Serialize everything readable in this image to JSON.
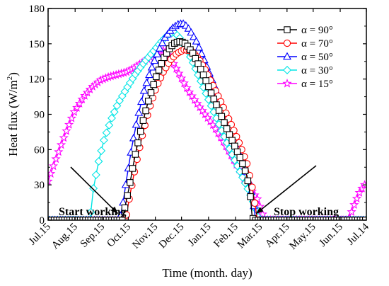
{
  "chart_data": {
    "type": "line",
    "ylabel": "Heat flux (W/m²)",
    "ylabel_main": "Heat flux (W/m",
    "ylabel_sup": "2",
    "ylabel_end": ")",
    "xlabel": "Time (month. day)",
    "ylim": [
      0,
      180
    ],
    "yticks": [
      0,
      30,
      60,
      90,
      120,
      150,
      180
    ],
    "xlim": [
      0,
      365
    ],
    "xtick_days": [
      0,
      31,
      62,
      92,
      123,
      153,
      184,
      215,
      243,
      274,
      304,
      335,
      365
    ],
    "xtick_labels": [
      "Jul.15",
      "Aug.15",
      "Sep.15",
      "Oct.15",
      "Nov.15",
      "Dec.15",
      "Jan.15",
      "Feb.15",
      "Mar.15",
      "Apr.15",
      "May.15",
      "Jun.15",
      "Jul.14"
    ],
    "annotations": [
      {
        "text": "Start working",
        "arrow_to": [
          80,
          2
        ]
      },
      {
        "text": "Stop working",
        "arrow_to": [
          237,
          2
        ]
      }
    ],
    "series": [
      {
        "name": "α = 90°",
        "color": "#000000",
        "marker": "square",
        "points": [
          [
            0,
            0
          ],
          [
            77,
            0
          ],
          [
            85,
            0
          ],
          [
            93,
            28
          ],
          [
            100,
            56
          ],
          [
            108,
            82
          ],
          [
            116,
            104
          ],
          [
            124,
            122
          ],
          [
            132,
            137
          ],
          [
            140,
            147
          ],
          [
            146,
            151
          ],
          [
            152,
            152
          ],
          [
            158,
            150
          ],
          [
            166,
            142
          ],
          [
            174,
            130
          ],
          [
            182,
            117
          ],
          [
            190,
            103
          ],
          [
            198,
            90
          ],
          [
            206,
            76
          ],
          [
            214,
            63
          ],
          [
            222,
            50
          ],
          [
            228,
            38
          ],
          [
            232,
            20
          ],
          [
            234,
            3
          ],
          [
            236,
            0
          ],
          [
            365,
            0
          ]
        ]
      },
      {
        "name": "α = 70°",
        "color": "#ff0000",
        "marker": "circle",
        "points": [
          [
            0,
            0
          ],
          [
            82,
            0
          ],
          [
            89,
            0
          ],
          [
            93,
            18
          ],
          [
            100,
            45
          ],
          [
            108,
            72
          ],
          [
            116,
            95
          ],
          [
            124,
            113
          ],
          [
            132,
            126
          ],
          [
            140,
            136
          ],
          [
            148,
            142
          ],
          [
            156,
            145
          ],
          [
            164,
            144
          ],
          [
            172,
            138
          ],
          [
            180,
            128
          ],
          [
            188,
            116
          ],
          [
            196,
            104
          ],
          [
            204,
            91
          ],
          [
            212,
            78
          ],
          [
            220,
            64
          ],
          [
            228,
            48
          ],
          [
            234,
            28
          ],
          [
            238,
            10
          ],
          [
            240,
            0
          ],
          [
            365,
            0
          ]
        ]
      },
      {
        "name": "α = 50°",
        "color": "#0000ff",
        "marker": "triangle",
        "points": [
          [
            0,
            0
          ],
          [
            78,
            0
          ],
          [
            82,
            0
          ],
          [
            86,
            15
          ],
          [
            90,
            35
          ],
          [
            96,
            62
          ],
          [
            102,
            85
          ],
          [
            110,
            110
          ],
          [
            118,
            128
          ],
          [
            126,
            143
          ],
          [
            134,
            155
          ],
          [
            142,
            163
          ],
          [
            150,
            167
          ],
          [
            156,
            167
          ],
          [
            162,
            162
          ],
          [
            170,
            152
          ],
          [
            178,
            138
          ],
          [
            186,
            123
          ],
          [
            194,
            108
          ],
          [
            202,
            92
          ],
          [
            210,
            76
          ],
          [
            218,
            60
          ],
          [
            226,
            44
          ],
          [
            232,
            28
          ],
          [
            236,
            12
          ],
          [
            238,
            0
          ],
          [
            365,
            0
          ]
        ]
      },
      {
        "name": "α = 30°",
        "color": "#00e5e5",
        "marker": "diamond",
        "points": [
          [
            0,
            0
          ],
          [
            43,
            0
          ],
          [
            48,
            0
          ],
          [
            52,
            27
          ],
          [
            58,
            50
          ],
          [
            64,
            68
          ],
          [
            72,
            85
          ],
          [
            80,
            99
          ],
          [
            90,
            112
          ],
          [
            100,
            124
          ],
          [
            110,
            134
          ],
          [
            120,
            143
          ],
          [
            130,
            152
          ],
          [
            138,
            158
          ],
          [
            144,
            160
          ],
          [
            150,
            156
          ],
          [
            158,
            147
          ],
          [
            166,
            134
          ],
          [
            174,
            120
          ],
          [
            182,
            106
          ],
          [
            190,
            92
          ],
          [
            198,
            78
          ],
          [
            206,
            64
          ],
          [
            214,
            51
          ],
          [
            222,
            38
          ],
          [
            230,
            25
          ],
          [
            236,
            14
          ],
          [
            240,
            5
          ],
          [
            242,
            0
          ],
          [
            365,
            0
          ]
        ]
      },
      {
        "name": "α = 15°",
        "color": "#ff00ff",
        "marker": "star",
        "points": [
          [
            0,
            33
          ],
          [
            6,
            46
          ],
          [
            12,
            58
          ],
          [
            20,
            74
          ],
          [
            30,
            92
          ],
          [
            40,
            104
          ],
          [
            50,
            113
          ],
          [
            60,
            119
          ],
          [
            70,
            122
          ],
          [
            80,
            124
          ],
          [
            90,
            126
          ],
          [
            100,
            130
          ],
          [
            110,
            135
          ],
          [
            120,
            140
          ],
          [
            126,
            143
          ],
          [
            130,
            145
          ],
          [
            136,
            143
          ],
          [
            144,
            133
          ],
          [
            152,
            122
          ],
          [
            160,
            111
          ],
          [
            170,
            100
          ],
          [
            180,
            90
          ],
          [
            190,
            80
          ],
          [
            200,
            68
          ],
          [
            210,
            55
          ],
          [
            220,
            42
          ],
          [
            230,
            29
          ],
          [
            240,
            18
          ],
          [
            246,
            5
          ],
          [
            248,
            0
          ],
          [
            344,
            0
          ],
          [
            347,
            5
          ],
          [
            352,
            15
          ],
          [
            358,
            25
          ],
          [
            365,
            32
          ]
        ]
      }
    ]
  }
}
